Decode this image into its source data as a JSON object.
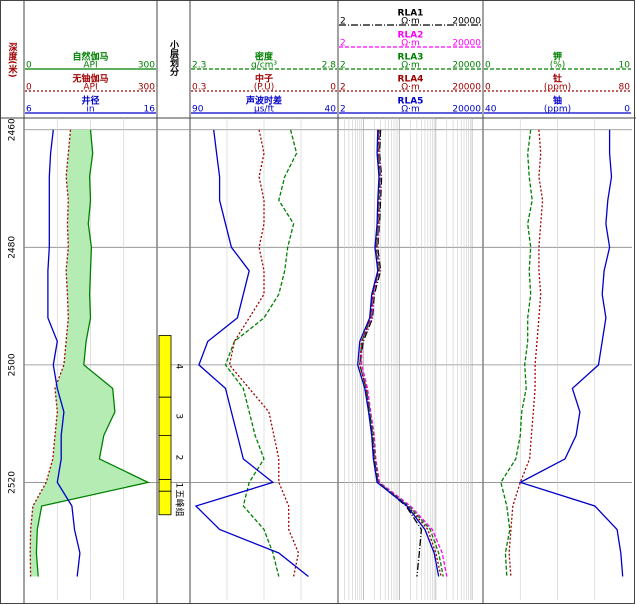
{
  "chart_data": {
    "type": "well-log",
    "depth_title": "深度(米)",
    "ylim": [
      2458,
      2540
    ],
    "yticks": [
      2460,
      2480,
      2500,
      2520
    ],
    "grid": true,
    "depth": [
      2460,
      2464,
      2468,
      2472,
      2476,
      2480,
      2484,
      2488,
      2492,
      2496,
      2500,
      2504,
      2508,
      2512,
      2516,
      2520,
      2524,
      2528,
      2532,
      2536
    ],
    "tracks": [
      {
        "type": "curves",
        "curves": [
          {
            "name": "自然伽马",
            "unit": "API",
            "lim": [
              0,
              300
            ],
            "color": "#008000",
            "style": "solid",
            "fill": "#b4ecb4",
            "values": [
              150,
              155,
              148,
              150,
              145,
              152,
              150,
              148,
              150,
              140,
              135,
              200,
              205,
              180,
              170,
              280,
              40,
              30,
              28,
              32
            ]
          },
          {
            "name": "无铀伽马",
            "unit": "API",
            "lim": [
              0,
              300
            ],
            "color": "#a00000",
            "style": "dotted",
            "values": [
              105,
              100,
              95,
              100,
              98,
              100,
              95,
              98,
              100,
              95,
              90,
              70,
              75,
              70,
              65,
              50,
              20,
              15,
              14,
              15
            ]
          },
          {
            "name": "井径",
            "unit": "in",
            "lim": [
              6,
              16
            ],
            "color": "#0000cc",
            "style": "solid",
            "values": [
              8.2,
              8.0,
              7.9,
              7.9,
              7.9,
              7.9,
              7.8,
              7.8,
              7.8,
              8.5,
              8.2,
              8.5,
              9,
              8.8,
              8.8,
              8.5,
              9.6,
              9.8,
              10.2,
              10
            ]
          }
        ]
      },
      {
        "type": "zones",
        "title": "小层划分",
        "color": "#ffff00",
        "zones": [
          {
            "label": "4",
            "top": 2495,
            "bottom": 2505.5
          },
          {
            "label": "3",
            "top": 2505.5,
            "bottom": 2512
          },
          {
            "label": "2",
            "top": 2512,
            "bottom": 2519.5
          },
          {
            "label": "1",
            "top": 2519.5,
            "bottom": 2521.5
          },
          {
            "label": "五峰组",
            "top": 2521.5,
            "bottom": 2525.5
          }
        ]
      },
      {
        "type": "curves",
        "curves": [
          {
            "name": "密度",
            "unit": "g/cm³",
            "lim": [
              2.3,
              2.8
            ],
            "color": "#008000",
            "style": "dashed",
            "values": [
              2.64,
              2.66,
              2.62,
              2.6,
              2.65,
              2.63,
              2.62,
              2.6,
              2.55,
              2.45,
              2.42,
              2.48,
              2.5,
              2.52,
              2.55,
              2.5,
              2.48,
              2.55,
              2.58,
              2.6
            ]
          },
          {
            "name": "中子",
            "unit": "(P.U)",
            "lim": [
              0.3,
              0
            ],
            "color": "#a00000",
            "style": "dotted",
            "values": [
              0.16,
              0.15,
              0.16,
              0.15,
              0.15,
              0.16,
              0.15,
              0.15,
              0.18,
              0.21,
              0.22,
              0.18,
              0.14,
              0.13,
              0.12,
              0.12,
              0.1,
              0.1,
              0.08,
              0.09
            ]
          },
          {
            "name": "声波时差",
            "unit": "μs/ft",
            "lim": [
              90,
              40
            ],
            "color": "#0000cc",
            "style": "solid",
            "values": [
              82,
              81,
              80,
              80,
              78,
              76,
              70,
              72,
              74,
              84,
              87,
              78,
              76,
              74,
              72,
              62,
              88,
              80,
              60,
              50
            ]
          }
        ]
      },
      {
        "type": "curves",
        "log": true,
        "curves": [
          {
            "name": "RLA1",
            "unit": "Ω·m",
            "lim": [
              2,
              20000
            ],
            "color": "#000000",
            "style": "dashdot",
            "values": [
              30,
              28,
              32,
              30,
              28,
              25,
              30,
              20,
              18,
              10,
              8,
              12,
              15,
              18,
              20,
              25,
              150,
              400,
              350,
              300
            ]
          },
          {
            "name": "RLA2",
            "unit": "Ω·m",
            "lim": [
              2,
              20000
            ],
            "color": "#ff00ff",
            "style": "dashed",
            "values": [
              28,
              27,
              30,
              28,
              27,
              24,
              28,
              19,
              17,
              9,
              9,
              13,
              16,
              20,
              22,
              28,
              200,
              800,
              1500,
              2000
            ]
          },
          {
            "name": "RLA3",
            "unit": "Ω·m",
            "lim": [
              2,
              20000
            ],
            "color": "#008000",
            "style": "dashed",
            "values": [
              27,
              26,
              29,
              27,
              26,
              23,
              27,
              18,
              16,
              9,
              8,
              12,
              15,
              19,
              21,
              26,
              180,
              700,
              1200,
              1600
            ]
          },
          {
            "name": "RLA4",
            "unit": "Ω·m",
            "lim": [
              2,
              20000
            ],
            "color": "#a00000",
            "style": "dotted",
            "values": [
              26,
              25,
              28,
              26,
              25,
              22,
              26,
              18,
              16,
              9,
              8,
              12,
              14,
              18,
              20,
              25,
              170,
              600,
              1000,
              1400
            ]
          },
          {
            "name": "RLA5",
            "unit": "Ω·m",
            "lim": [
              2,
              20000
            ],
            "color": "#0000cc",
            "style": "solid",
            "values": [
              25,
              24,
              27,
              25,
              24,
              21,
              25,
              17,
              15,
              8,
              7,
              11,
              14,
              17,
              19,
              24,
              160,
              500,
              900,
              1200
            ]
          }
        ]
      },
      {
        "type": "curves",
        "curves": [
          {
            "name": "钾",
            "unit": "(%)",
            "lim": [
              0,
              10
            ],
            "color": "#008000",
            "style": "dashed",
            "values": [
              3.2,
              3.0,
              3.1,
              3.3,
              3.0,
              3.2,
              3.1,
              3.2,
              3.0,
              3.0,
              2.8,
              2.9,
              2.6,
              2.5,
              2.2,
              1.2,
              1.6,
              1.8,
              1.5,
              1.6
            ]
          },
          {
            "name": "钍",
            "unit": "(ppm)",
            "lim": [
              0,
              80
            ],
            "color": "#a00000",
            "style": "dotted",
            "values": [
              30,
              31,
              30,
              32,
              31,
              30,
              30,
              31,
              30,
              29,
              28,
              28,
              27,
              26,
              25,
              20,
              16,
              15,
              14,
              15
            ]
          },
          {
            "name": "铀",
            "unit": "(ppm)",
            "lim": [
              40,
              0
            ],
            "color": "#0000cc",
            "style": "solid",
            "values": [
              6,
              6,
              5.5,
              6.5,
              7,
              6,
              7.5,
              8,
              7,
              8,
              9,
              16,
              14,
              15,
              18,
              30,
              10,
              4,
              3,
              2.5
            ]
          }
        ]
      }
    ]
  }
}
